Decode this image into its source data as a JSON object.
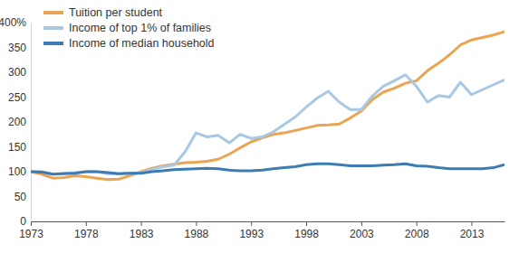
{
  "chart_data": {
    "type": "line",
    "x": [
      1973,
      1974,
      1975,
      1976,
      1977,
      1978,
      1979,
      1980,
      1981,
      1982,
      1983,
      1984,
      1985,
      1986,
      1987,
      1988,
      1989,
      1990,
      1991,
      1992,
      1993,
      1994,
      1995,
      1996,
      1997,
      1998,
      1999,
      2000,
      2001,
      2002,
      2003,
      2004,
      2005,
      2006,
      2007,
      2008,
      2009,
      2010,
      2011,
      2012,
      2013,
      2014,
      2015,
      2016
    ],
    "series": [
      {
        "name": "Tuition per student",
        "color": "#eba451",
        "values": [
          100,
          95,
          87,
          88,
          92,
          90,
          87,
          84,
          85,
          92,
          100,
          107,
          112,
          115,
          118,
          119,
          121,
          125,
          135,
          148,
          160,
          168,
          175,
          178,
          183,
          188,
          193,
          194,
          196,
          208,
          222,
          245,
          260,
          268,
          278,
          283,
          303,
          318,
          335,
          355,
          365,
          370,
          375,
          382
        ]
      },
      {
        "name": "Income of top 1% of families",
        "color": "#a8c8e4",
        "values": [
          100,
          100,
          95,
          97,
          98,
          100,
          100,
          96,
          96,
          97,
          98,
          105,
          110,
          113,
          140,
          178,
          170,
          173,
          158,
          175,
          167,
          170,
          180,
          195,
          210,
          230,
          248,
          262,
          240,
          225,
          225,
          252,
          272,
          283,
          295,
          272,
          240,
          253,
          250,
          280,
          255,
          265,
          275,
          285
        ]
      },
      {
        "name": "Income of median household",
        "color": "#3d7cb2",
        "values": [
          100,
          99,
          95,
          96,
          97,
          100,
          100,
          98,
          96,
          97,
          97,
          100,
          102,
          104,
          105,
          106,
          107,
          106,
          103,
          102,
          102,
          103,
          106,
          108,
          110,
          114,
          116,
          116,
          114,
          112,
          112,
          112,
          113,
          114,
          116,
          112,
          111,
          108,
          106,
          106,
          106,
          106,
          108,
          114
        ]
      }
    ],
    "xlim": [
      1973,
      2016
    ],
    "xticks": [
      1973,
      1978,
      1983,
      1988,
      1993,
      1998,
      2003,
      2008,
      2013
    ],
    "ylim": [
      0,
      400
    ],
    "yticks": [
      0,
      50,
      100,
      150,
      200,
      250,
      300,
      350,
      {
        "value": 400,
        "label": "400%"
      }
    ],
    "grid": false,
    "legend": "top-left"
  }
}
